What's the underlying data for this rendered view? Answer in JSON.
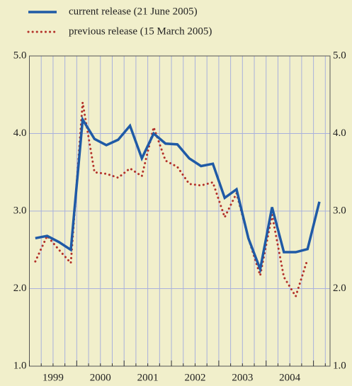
{
  "chart_data": {
    "type": "line",
    "x": [
      1999.125,
      1999.375,
      1999.625,
      1999.875,
      2000.125,
      2000.375,
      2000.625,
      2000.875,
      2001.125,
      2001.375,
      2001.625,
      2001.875,
      2002.125,
      2002.375,
      2002.625,
      2002.875,
      2003.125,
      2003.375,
      2003.625,
      2003.875,
      2004.125,
      2004.375,
      2004.625,
      2004.875,
      2005.125
    ],
    "series": [
      {
        "name": "current release (21 June 2005)",
        "color": "#1f5aa6",
        "dash": "solid",
        "values": [
          2.65,
          2.68,
          2.6,
          2.5,
          4.18,
          3.93,
          3.85,
          3.92,
          4.1,
          3.68,
          4.0,
          3.87,
          3.86,
          3.68,
          3.58,
          3.61,
          3.17,
          3.28,
          2.65,
          2.25,
          3.05,
          2.47,
          2.47,
          2.51,
          3.12
        ]
      },
      {
        "name": "previous release (15 March 2005)",
        "color": "#b3312a",
        "dash": "dotted",
        "values": [
          2.35,
          2.68,
          2.5,
          2.33,
          4.4,
          3.5,
          3.48,
          3.43,
          3.55,
          3.45,
          4.08,
          3.65,
          3.57,
          3.35,
          3.33,
          3.37,
          2.92,
          3.23,
          2.65,
          2.17,
          2.95,
          2.15,
          1.9,
          2.38,
          null
        ]
      }
    ],
    "xlim": [
      1999,
      2005.35
    ],
    "xticks": [
      {
        "value": 1999.5,
        "label": "1999"
      },
      {
        "value": 2000.5,
        "label": "2000"
      },
      {
        "value": 2001.5,
        "label": "2001"
      },
      {
        "value": 2002.5,
        "label": "2002"
      },
      {
        "value": 2003.5,
        "label": "2003"
      },
      {
        "value": 2004.5,
        "label": "2004"
      }
    ],
    "xgrid_step": 0.25,
    "ylim": [
      1,
      5
    ],
    "yticks": [
      {
        "value": 1,
        "label": "1.0"
      },
      {
        "value": 2,
        "label": "2.0"
      },
      {
        "value": 3,
        "label": "3.0"
      },
      {
        "value": 4,
        "label": "4.0"
      },
      {
        "value": 5,
        "label": "5.0"
      }
    ],
    "grid": true,
    "right_axis_labels": true
  }
}
